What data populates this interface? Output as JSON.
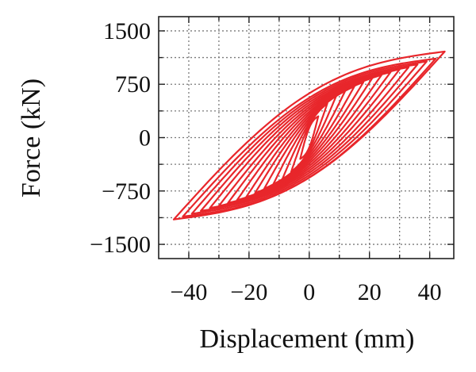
{
  "chart_data": {
    "type": "line",
    "xlabel": "Displacement (mm)",
    "ylabel": "Force (kN)",
    "xlim": [
      -50,
      48
    ],
    "ylim": [
      -1700,
      1700
    ],
    "xticks": [
      -40,
      -20,
      0,
      20,
      40
    ],
    "yticks": [
      1500,
      750,
      0,
      -750,
      -1500
    ],
    "xtick_labels": [
      "−40",
      "−20",
      "0",
      "20",
      "40"
    ],
    "ytick_labels": [
      "1500",
      "750",
      "0",
      "−750",
      "−1500"
    ],
    "grid": true,
    "line_color": "#e8262b",
    "series": [
      {
        "values": [
          [
            -3,
            -300
          ],
          [
            3,
            300
          ]
        ],
        "xs": [
          -3,
          3
        ],
        "ys": [
          -300,
          300
        ]
      },
      {
        "xs": [
          -6,
          6
        ],
        "ys": [
          -480,
          480
        ]
      },
      {
        "xs": [
          -9,
          9
        ],
        "ys": [
          -590,
          590
        ]
      },
      {
        "xs": [
          -12,
          12
        ],
        "ys": [
          -660,
          660
        ]
      },
      {
        "xs": [
          -15,
          15
        ],
        "ys": [
          -720,
          720
        ]
      },
      {
        "xs": [
          -18,
          18
        ],
        "ys": [
          -780,
          780
        ]
      },
      {
        "xs": [
          -21,
          21
        ],
        "ys": [
          -840,
          840
        ]
      },
      {
        "xs": [
          -24,
          24
        ],
        "ys": [
          -880,
          880
        ]
      },
      {
        "xs": [
          -27,
          27
        ],
        "ys": [
          -920,
          920
        ]
      },
      {
        "xs": [
          -30,
          30
        ],
        "ys": [
          -960,
          960
        ]
      },
      {
        "xs": [
          -33,
          33
        ],
        "ys": [
          -990,
          990
        ]
      },
      {
        "xs": [
          -36,
          36
        ],
        "ys": [
          -1030,
          1030
        ]
      },
      {
        "xs": [
          -39,
          39
        ],
        "ys": [
          -1070,
          1070
        ]
      },
      {
        "xs": [
          -42,
          42
        ],
        "ys": [
          -1110,
          1110
        ]
      },
      {
        "xs": [
          -45,
          45
        ],
        "ys": [
          -1150,
          1210
        ]
      }
    ]
  }
}
